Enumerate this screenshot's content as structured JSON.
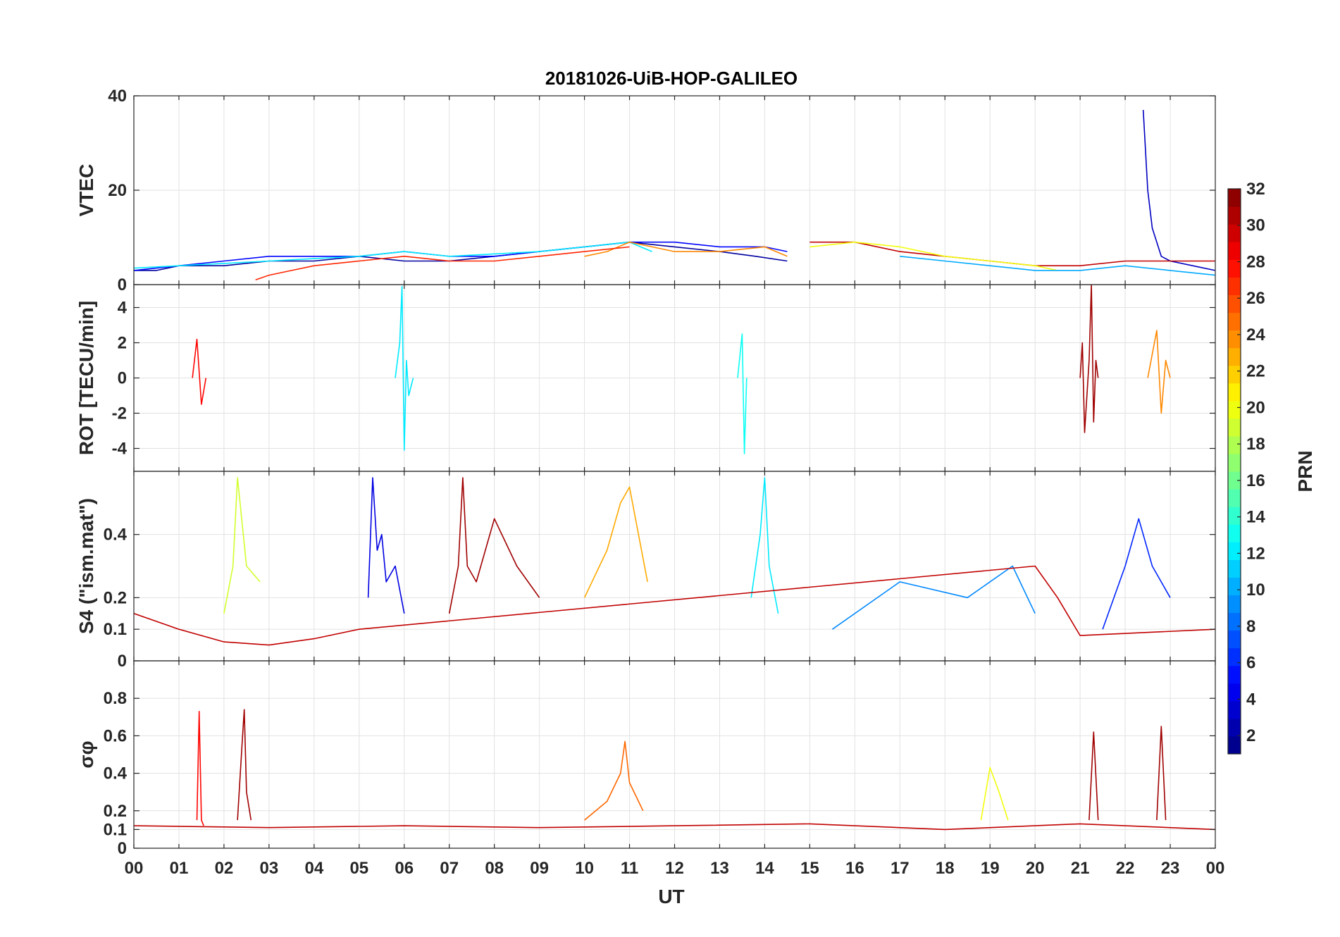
{
  "chart_data": {
    "type": "line",
    "title": "20181026-UiB-HOP-GALILEO",
    "xlabel": "UT",
    "x_ticks": [
      "00",
      "01",
      "02",
      "03",
      "04",
      "05",
      "06",
      "07",
      "08",
      "09",
      "10",
      "11",
      "12",
      "13",
      "14",
      "15",
      "16",
      "17",
      "18",
      "19",
      "20",
      "21",
      "22",
      "23",
      "00"
    ],
    "xlim": [
      0,
      24
    ],
    "grid": true,
    "colorbar": {
      "label": "PRN",
      "range": [
        1,
        32
      ],
      "ticks": [
        "2",
        "4",
        "6",
        "8",
        "10",
        "12",
        "14",
        "16",
        "18",
        "20",
        "22",
        "24",
        "26",
        "28",
        "30",
        "32"
      ],
      "colormap": "jet",
      "levels": 32
    },
    "panels": [
      {
        "ylabel": "VTEC",
        "ylim": [
          0,
          40
        ],
        "y_ticks": [
          "0",
          "20",
          "40"
        ],
        "series": [
          {
            "prn": 2,
            "x": [
              0,
              0.5,
              1,
              2,
              3,
              4,
              5,
              6,
              7,
              8,
              9,
              10,
              11,
              12,
              13,
              13.8,
              14.5
            ],
            "y": [
              3,
              3,
              4,
              4,
              5,
              5,
              6,
              5,
              5,
              6,
              7,
              8,
              9,
              8,
              7,
              6,
              5
            ]
          },
          {
            "prn": 5,
            "x": [
              0,
              1,
              2,
              3,
              4,
              5,
              6,
              7,
              8,
              9,
              10,
              11,
              12,
              13,
              14,
              14.5
            ],
            "y": [
              3,
              4,
              5,
              6,
              6,
              6,
              7,
              6,
              6,
              7,
              8,
              9,
              9,
              8,
              8,
              7
            ]
          },
          {
            "prn": 12,
            "x": [
              0,
              1,
              2,
              3,
              4,
              5,
              6,
              7,
              8,
              9,
              10,
              11,
              11.5
            ],
            "y": [
              3.5,
              4,
              4.5,
              5,
              5.5,
              6,
              7,
              6,
              6.5,
              7,
              8,
              9,
              7
            ]
          },
          {
            "prn": 24,
            "x": [
              10,
              10.5,
              11,
              11.5,
              12,
              13,
              14,
              14.5
            ],
            "y": [
              6,
              7,
              9,
              8,
              7,
              7,
              8,
              6
            ]
          },
          {
            "prn": 3,
            "x": [
              22.4,
              22.5,
              22.6,
              22.8,
              23,
              23.5,
              24
            ],
            "y": [
              37,
              20,
              12,
              6,
              5,
              4,
              3
            ]
          },
          {
            "prn": 30,
            "x": [
              15,
              16,
              17,
              18,
              19,
              20,
              21,
              22,
              23,
              24
            ],
            "y": [
              9,
              9,
              7,
              6,
              5,
              4,
              4,
              5,
              5,
              5
            ]
          },
          {
            "prn": 27,
            "x": [
              2.7,
              3,
              3.5,
              4,
              5,
              6,
              7,
              8,
              9,
              10,
              11
            ],
            "y": [
              1,
              2,
              3,
              4,
              5,
              6,
              5,
              5,
              6,
              7,
              8
            ]
          },
          {
            "prn": 20,
            "x": [
              15,
              16,
              17,
              18,
              19,
              20,
              20.5
            ],
            "y": [
              8,
              9,
              8,
              6,
              5,
              4,
              3
            ]
          },
          {
            "prn": 10,
            "x": [
              17,
              18,
              19,
              20,
              21,
              22,
              23,
              24
            ],
            "y": [
              6,
              5,
              4,
              3,
              3,
              4,
              3,
              2
            ]
          }
        ]
      },
      {
        "ylabel": "ROT [TECU/min]",
        "ylim": [
          -5.3,
          5.3
        ],
        "y_ticks": [
          "-4",
          "-2",
          "0",
          "2",
          "4"
        ],
        "series": [
          {
            "prn": 12,
            "x": [
              5.8,
              5.9,
              5.95,
              6,
              6.05,
              6.1,
              6.2
            ],
            "y": [
              0,
              2,
              5.2,
              -4.1,
              1,
              -1,
              0
            ]
          },
          {
            "prn": 31,
            "x": [
              21,
              21.05,
              21.1,
              21.2,
              21.25,
              21.3,
              21.35,
              21.4
            ],
            "y": [
              0,
              2,
              -3.1,
              1,
              5.3,
              -2.5,
              1,
              0
            ]
          },
          {
            "prn": 13,
            "x": [
              13.4,
              13.5,
              13.55,
              13.6
            ],
            "y": [
              0,
              2.5,
              -4.3,
              0
            ]
          },
          {
            "prn": 24,
            "x": [
              22.5,
              22.7,
              22.8,
              22.9,
              23
            ],
            "y": [
              0,
              2.7,
              -2,
              1,
              0
            ]
          },
          {
            "prn": 28,
            "x": [
              1.3,
              1.4,
              1.5,
              1.6
            ],
            "y": [
              0,
              2.2,
              -1.5,
              0
            ]
          }
        ]
      },
      {
        "ylabel": "S4 (\"ism.mat\")",
        "ylim": [
          0,
          0.6
        ],
        "y_ticks": [
          "0",
          "0.1",
          "0.2",
          "0.4"
        ],
        "series": [
          {
            "prn": 4,
            "x": [
              5.2,
              5.3,
              5.4,
              5.5,
              5.6,
              5.8,
              6
            ],
            "y": [
              0.2,
              0.58,
              0.35,
              0.4,
              0.25,
              0.3,
              0.15
            ]
          },
          {
            "prn": 31,
            "x": [
              7,
              7.2,
              7.3,
              7.4,
              7.6,
              8,
              8.5,
              9
            ],
            "y": [
              0.15,
              0.3,
              0.58,
              0.3,
              0.25,
              0.45,
              0.3,
              0.2
            ]
          },
          {
            "prn": 23,
            "x": [
              10,
              10.5,
              10.8,
              11,
              11.2,
              11.4
            ],
            "y": [
              0.2,
              0.35,
              0.5,
              0.55,
              0.4,
              0.25
            ]
          },
          {
            "prn": 12,
            "x": [
              13.7,
              13.9,
              14,
              14.1,
              14.3
            ],
            "y": [
              0.2,
              0.4,
              0.58,
              0.3,
              0.15
            ]
          },
          {
            "prn": 19,
            "x": [
              2,
              2.2,
              2.3,
              2.5,
              2.8
            ],
            "y": [
              0.15,
              0.3,
              0.58,
              0.3,
              0.25
            ]
          },
          {
            "prn": 6,
            "x": [
              21.5,
              22,
              22.3,
              22.6,
              23
            ],
            "y": [
              0.1,
              0.3,
              0.45,
              0.3,
              0.2
            ]
          },
          {
            "prn": 9,
            "x": [
              15.5,
              17,
              18.5,
              19.5,
              20
            ],
            "y": [
              0.1,
              0.25,
              0.2,
              0.3,
              0.15
            ]
          },
          {
            "prn": 30,
            "x": [
              0,
              1,
              2,
              3,
              4,
              5,
              20,
              20.5,
              21,
              24
            ],
            "y": [
              0.15,
              0.1,
              0.06,
              0.05,
              0.07,
              0.1,
              0.3,
              0.2,
              0.08,
              0.1
            ]
          }
        ]
      },
      {
        "ylabel": "σφ",
        "ylim": [
          0,
          1
        ],
        "y_ticks": [
          "0",
          "0.1",
          "0.2",
          "0.4",
          "0.6",
          "0.8"
        ],
        "series": [
          {
            "prn": 28,
            "x": [
              1.4,
              1.45,
              1.5,
              1.55
            ],
            "y": [
              0.15,
              0.73,
              0.15,
              0.12
            ]
          },
          {
            "prn": 31,
            "x": [
              2.3,
              2.4,
              2.45,
              2.5,
              2.6
            ],
            "y": [
              0.15,
              0.55,
              0.74,
              0.3,
              0.15
            ]
          },
          {
            "prn": 25,
            "x": [
              10,
              10.5,
              10.8,
              10.9,
              11,
              11.3
            ],
            "y": [
              0.15,
              0.25,
              0.4,
              0.57,
              0.35,
              0.2
            ]
          },
          {
            "prn": 31,
            "x": [
              21.2,
              21.3,
              21.4
            ],
            "y": [
              0.15,
              0.62,
              0.15
            ]
          },
          {
            "prn": 31,
            "x": [
              22.7,
              22.8,
              22.9
            ],
            "y": [
              0.15,
              0.65,
              0.15
            ]
          },
          {
            "prn": 20,
            "x": [
              18.8,
              19,
              19.2,
              19.4
            ],
            "y": [
              0.15,
              0.43,
              0.3,
              0.15
            ]
          },
          {
            "prn": 30,
            "x": [
              0,
              3,
              6,
              9,
              12,
              15,
              18,
              21,
              24
            ],
            "y": [
              0.12,
              0.11,
              0.12,
              0.11,
              0.12,
              0.13,
              0.1,
              0.13,
              0.1
            ]
          }
        ]
      }
    ]
  }
}
